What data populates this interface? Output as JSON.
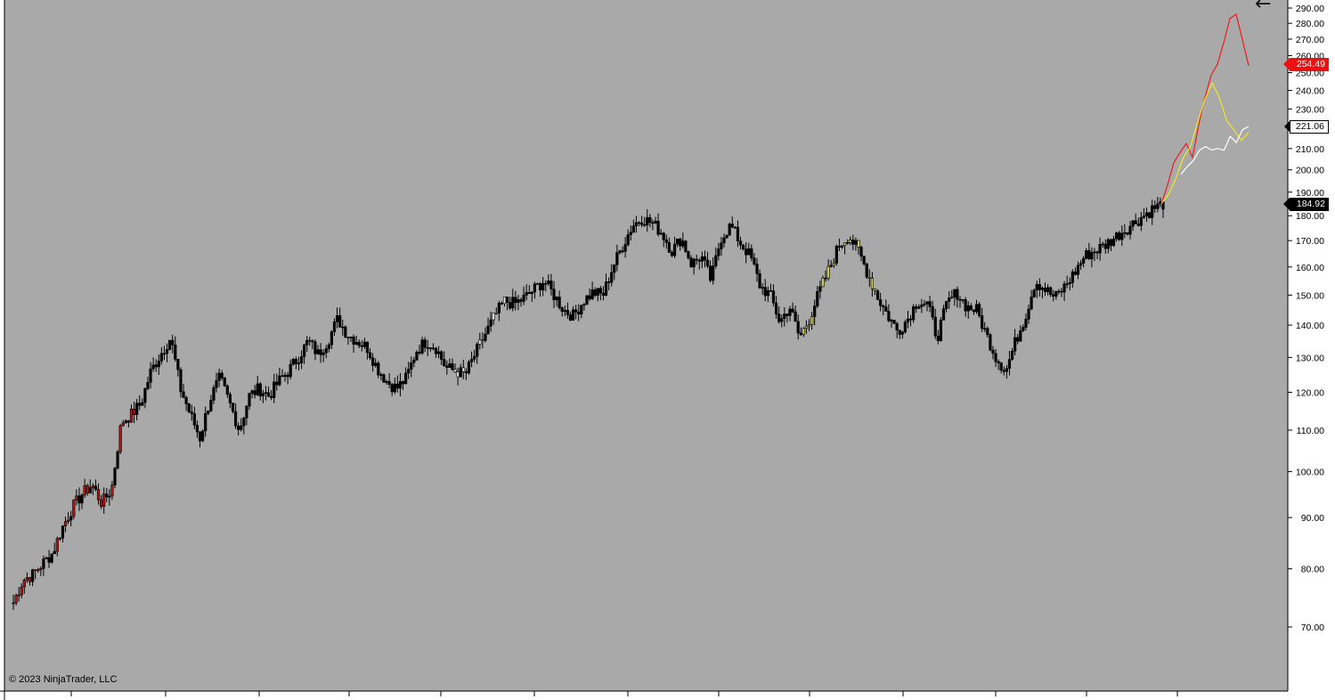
{
  "copyright": "© 2023 NinjaTrader, LLC",
  "back_icon": "left-arrow-icon",
  "colors": {
    "panel_bg": "#a9a9a9",
    "price_axis_bg": "#ffffff",
    "candle_main": "#000000",
    "candle_red": "#b01818",
    "candle_yellow": "#d8d04a",
    "candle_white": "#e8e8e8",
    "projection_red": "#ee1c1c",
    "projection_yellow": "#f0e81e",
    "projection_white": "#ffffff"
  },
  "price_badges": {
    "red": "254.49",
    "white": "221.06",
    "black": "184.92"
  },
  "chart_data": {
    "type": "candlestick",
    "y_scale": "log",
    "ylim": [
      62,
      292
    ],
    "y_ticks": [
      "70.00",
      "80.00",
      "90.00",
      "100.00",
      "110.00",
      "120.00",
      "130.00",
      "140.00",
      "150.00",
      "160.00",
      "170.00",
      "180.00",
      "190.00",
      "200.00",
      "210.00",
      "220.00",
      "230.00",
      "240.00",
      "250.00",
      "260.00",
      "270.00",
      "280.00",
      "290.00"
    ],
    "y_tick_values": [
      70,
      80,
      90,
      100,
      110,
      120,
      130,
      140,
      150,
      160,
      170,
      180,
      190,
      200,
      210,
      220,
      230,
      240,
      250,
      260,
      270,
      280,
      290
    ],
    "grid": false,
    "legend": "none",
    "series": [
      {
        "color_key": "candle_main",
        "values": [
          74,
          78,
          79,
          81,
          83,
          88,
          92,
          95,
          97,
          93,
          96,
          112,
          114,
          117,
          126,
          131,
          136,
          121,
          114,
          108,
          118,
          124,
          117,
          110,
          119,
          121,
          119,
          123,
          126,
          130,
          135,
          131,
          135,
          142,
          137,
          135,
          133,
          127,
          123,
          121,
          124,
          132,
          135,
          133,
          127,
          126,
          125,
          131,
          137,
          143,
          148,
          147,
          149,
          152,
          155,
          150,
          145,
          143,
          148,
          151,
          150,
          160,
          168,
          176,
          179,
          177,
          173,
          166,
          171,
          161,
          164,
          155,
          171,
          176,
          169,
          164,
          153,
          150,
          141,
          146,
          136,
          142,
          151,
          159,
          168,
          172,
          166,
          157,
          149,
          143,
          138,
          142,
          148,
          147,
          136,
          147,
          151,
          146,
          145,
          137,
          130,
          126,
          135,
          143,
          155,
          152,
          149,
          153,
          158,
          164,
          166,
          168,
          171,
          174,
          177,
          180,
          183,
          185
        ]
      },
      {
        "color_key": "projection_red",
        "values": [
          185,
          195,
          202,
          208,
          214,
          207,
          222,
          238,
          248,
          256,
          268,
          283,
          287,
          270,
          254
        ]
      },
      {
        "color_key": "projection_yellow",
        "values": [
          185,
          190,
          198,
          205,
          212,
          222,
          236,
          242,
          238,
          226,
          218,
          215,
          218
        ]
      },
      {
        "color_key": "projection_white",
        "values": [
          198,
          203,
          206,
          208,
          209,
          210,
          212,
          211,
          214,
          213,
          218,
          221
        ]
      }
    ]
  }
}
